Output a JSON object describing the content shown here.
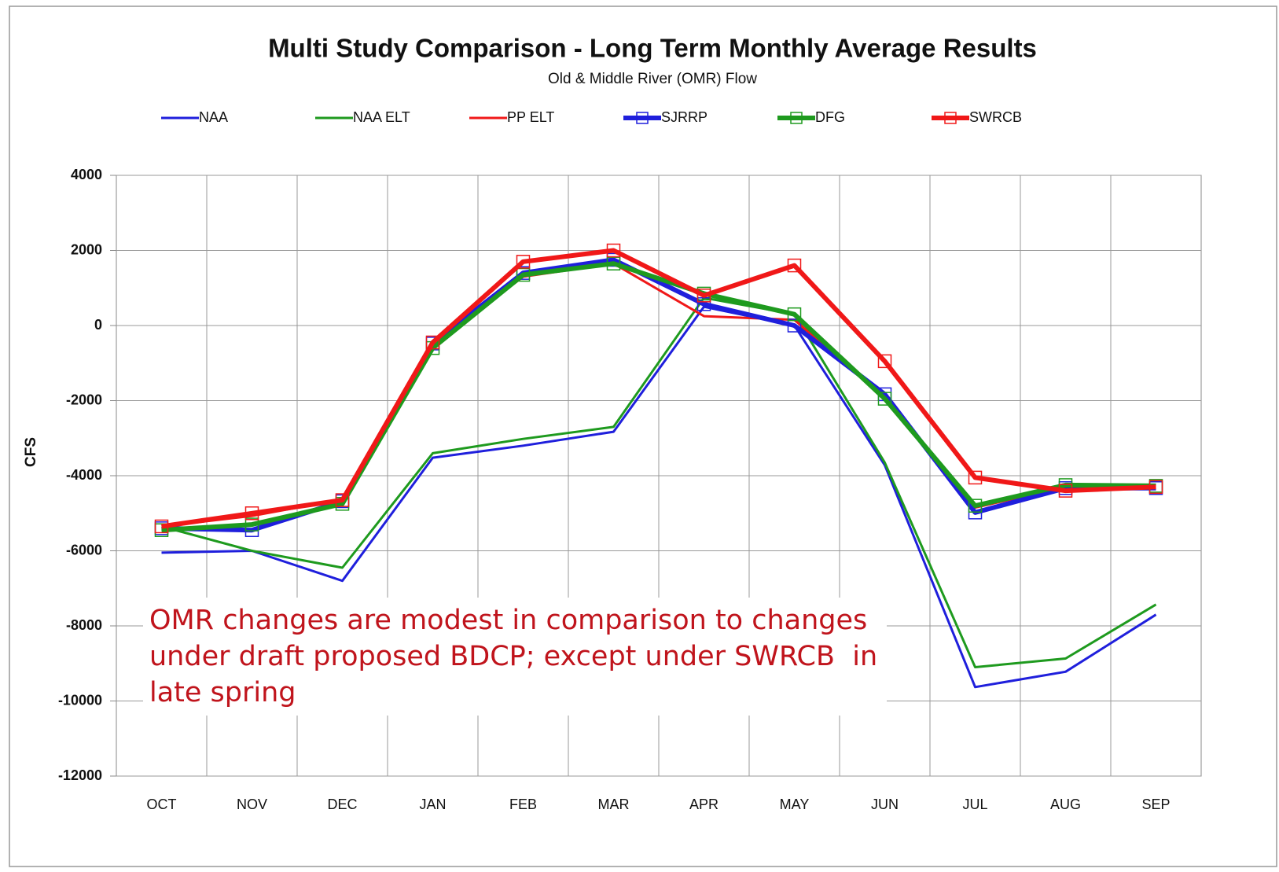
{
  "chart_data": {
    "type": "line",
    "title": "Multi Study Comparison - Long Term Monthly Average Results",
    "subtitle": "Old & Middle River (OMR) Flow",
    "y_label": "CFS",
    "annotation": "OMR changes are modest in comparison to changes under draft proposed BDCP; except under SWRCB  in late spring",
    "categories": [
      "OCT",
      "NOV",
      "DEC",
      "JAN",
      "FEB",
      "MAR",
      "APR",
      "MAY",
      "JUN",
      "JUL",
      "AUG",
      "SEP"
    ],
    "series": [
      {
        "name": "NAA",
        "color": "#1f1fdc",
        "marker": false,
        "values": [
          -6050,
          -6000,
          -6800,
          -3520,
          -3200,
          -2830,
          500,
          0,
          -3720,
          -9630,
          -9220,
          -7700
        ]
      },
      {
        "name": "NAA ELT",
        "color": "#1e9a1e",
        "marker": false,
        "values": [
          -5350,
          -6000,
          -6450,
          -3400,
          -3020,
          -2700,
          740,
          300,
          -3650,
          -9100,
          -8870,
          -7430
        ]
      },
      {
        "name": "PP ELT",
        "color": "#f01818",
        "marker": false,
        "values": [
          -5350,
          -5070,
          -4630,
          -500,
          1300,
          1650,
          250,
          150,
          -1900,
          -4850,
          -4300,
          -4300
        ]
      },
      {
        "name": "SJRRP",
        "color": "#1f1fdc",
        "marker": true,
        "values": [
          -5400,
          -5450,
          -4680,
          -480,
          1400,
          1750,
          570,
          0,
          -1830,
          -4980,
          -4330,
          -4330
        ]
      },
      {
        "name": "DFG",
        "color": "#1e9a1e",
        "marker": true,
        "values": [
          -5450,
          -5300,
          -4750,
          -600,
          1350,
          1650,
          850,
          300,
          -1950,
          -4800,
          -4250,
          -4270
        ]
      },
      {
        "name": "SWRCB",
        "color": "#f01818",
        "marker": true,
        "values": [
          -5350,
          -5000,
          -4650,
          -450,
          1700,
          2000,
          800,
          1600,
          -950,
          -4050,
          -4400,
          -4300
        ]
      }
    ],
    "ylim": [
      -12000,
      4000
    ],
    "yticks": [
      -12000,
      -10000,
      -8000,
      -6000,
      -4000,
      -2000,
      0,
      2000,
      4000
    ],
    "grid": true
  }
}
